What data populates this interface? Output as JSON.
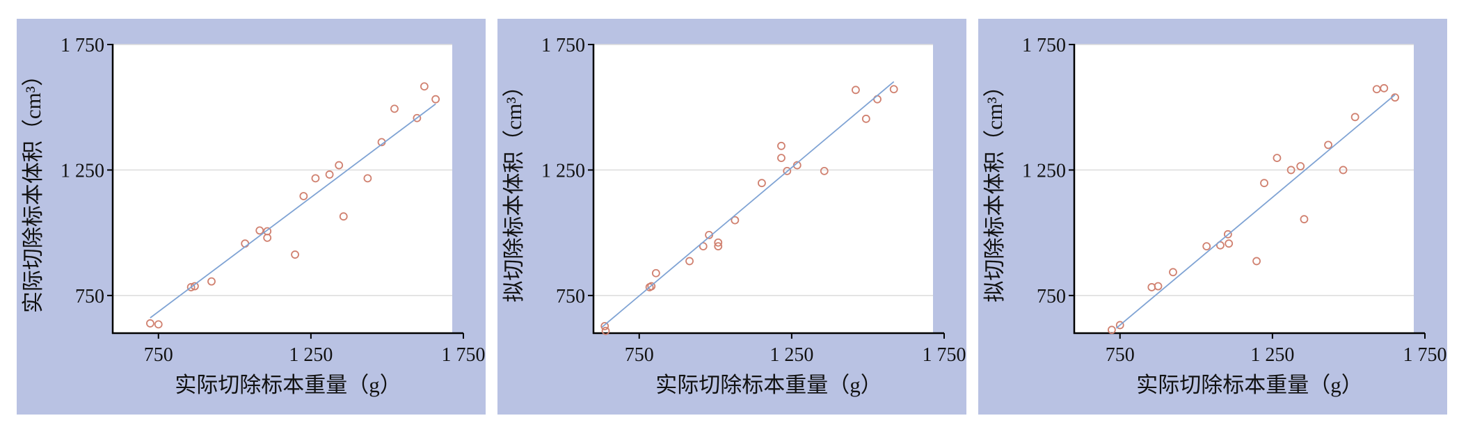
{
  "chart_data": [
    {
      "type": "scatter",
      "xlabel": "实际切除标本重量（g）",
      "ylabel": "实际切除标本体积（cm³）",
      "xlim": [
        600,
        1750
      ],
      "ylim": [
        600,
        1750
      ],
      "xticks": [
        750,
        {
          "value": 1250,
          "label": "1 250"
        },
        {
          "value": 1750,
          "label": "1 750"
        }
      ],
      "yticks": [
        750,
        {
          "value": 1250,
          "label": "1 250"
        },
        {
          "value": 1750,
          "label": "1 750"
        }
      ],
      "grid": true,
      "point_color": "#d0806f",
      "line_color": "#7fa3d4",
      "x": [
        723,
        750,
        857,
        869,
        924,
        1034,
        1082,
        1107,
        1107,
        1198,
        1226,
        1265,
        1311,
        1342,
        1357,
        1436,
        1482,
        1524,
        1598,
        1622,
        1659
      ],
      "y": [
        639,
        635,
        783,
        787,
        806,
        957,
        1009,
        1006,
        980,
        913,
        1146,
        1217,
        1232,
        1269,
        1065,
        1217,
        1361,
        1494,
        1457,
        1583,
        1532
      ],
      "fit_line": {
        "x": [
          723,
          1659
        ],
        "y": [
          661,
          1513
        ]
      }
    },
    {
      "type": "scatter",
      "xlabel": "实际切除标本重量（g）",
      "ylabel": "拟切除标本体积（cm³）",
      "xlim": [
        600,
        1750
      ],
      "ylim": [
        600,
        1750
      ],
      "xticks": [
        750,
        {
          "value": 1250,
          "label": "1 250"
        },
        {
          "value": 1750,
          "label": "1 750"
        }
      ],
      "yticks": [
        750,
        {
          "value": 1250,
          "label": "1 250"
        },
        {
          "value": 1750,
          "label": "1 750"
        }
      ],
      "grid": true,
      "point_color": "#d0806f",
      "line_color": "#7fa3d4",
      "x": [
        637,
        640,
        784,
        790,
        805,
        915,
        960,
        979,
        1009,
        1009,
        1064,
        1152,
        1216,
        1216,
        1235,
        1268,
        1357,
        1460,
        1494,
        1531,
        1585
      ],
      "y": [
        628,
        609,
        783,
        787,
        839,
        887,
        946,
        991,
        961,
        946,
        1050,
        1198,
        1346,
        1298,
        1246,
        1269,
        1246,
        1569,
        1454,
        1532,
        1572
      ],
      "fit_line": {
        "x": [
          628,
          1585
        ],
        "y": [
          624,
          1602
        ]
      }
    },
    {
      "type": "scatter",
      "xlabel": "实际切除标本重量（g）",
      "ylabel": "拟切除标本体积（cm³）",
      "xlim": [
        600,
        1750
      ],
      "ylim": [
        600,
        1750
      ],
      "xticks": [
        750,
        {
          "value": 1250,
          "label": "1 250"
        },
        {
          "value": 1750,
          "label": "1 750"
        }
      ],
      "yticks": [
        750,
        {
          "value": 1250,
          "label": "1 250"
        },
        {
          "value": 1750,
          "label": "1 750"
        }
      ],
      "grid": true,
      "point_color": "#d0806f",
      "line_color": "#7fa3d4",
      "x": [
        723,
        750,
        854,
        875,
        924,
        1034,
        1079,
        1104,
        1107,
        1198,
        1223,
        1265,
        1311,
        1342,
        1354,
        1433,
        1482,
        1521,
        1592,
        1616,
        1652
      ],
      "y": [
        613,
        632,
        783,
        787,
        843,
        946,
        950,
        994,
        957,
        887,
        1198,
        1298,
        1250,
        1265,
        1054,
        1350,
        1250,
        1461,
        1572,
        1576,
        1539
      ],
      "fit_line": {
        "x": [
          738,
          1652
        ],
        "y": [
          620,
          1550
        ]
      }
    }
  ]
}
